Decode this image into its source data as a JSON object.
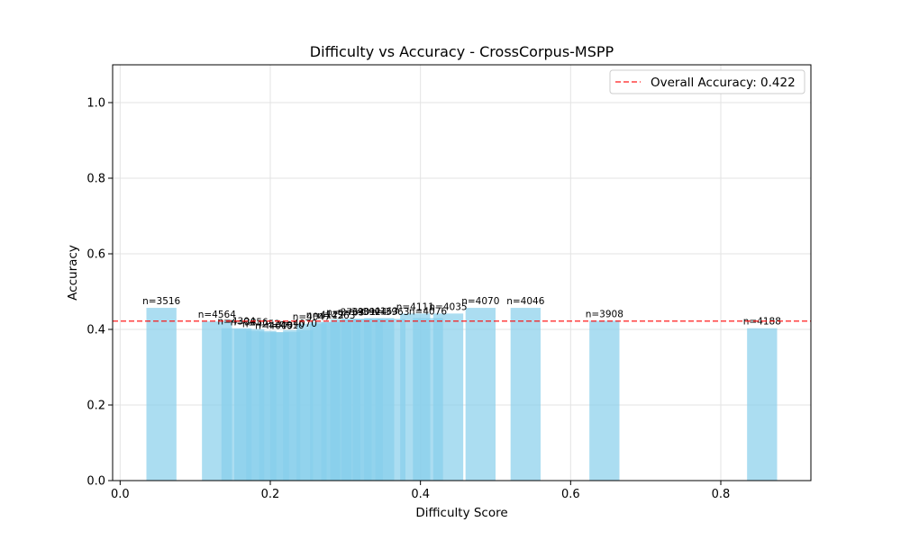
{
  "chart_data": {
    "type": "bar",
    "title": "Difficulty vs Accuracy - CrossCorpus-MSPP",
    "xlabel": "Difficulty Score",
    "ylabel": "Accuracy",
    "xlim": [
      -0.01,
      0.92
    ],
    "ylim": [
      0.0,
      1.1
    ],
    "xticks": [
      0.0,
      0.2,
      0.4,
      0.6,
      0.8
    ],
    "xtick_labels": [
      "0.0",
      "0.2",
      "0.4",
      "0.6",
      "0.8"
    ],
    "yticks": [
      0.0,
      0.2,
      0.4,
      0.6,
      0.8,
      1.0
    ],
    "ytick_labels": [
      "0.0",
      "0.2",
      "0.4",
      "0.6",
      "0.8",
      "1.0"
    ],
    "bar_width": 0.04,
    "grid": true,
    "bar_color": "#87ceeb",
    "bars": [
      {
        "x": 0.055,
        "value": 0.457,
        "label": "n=3516"
      },
      {
        "x": 0.129,
        "value": 0.421,
        "label": "n=4564"
      },
      {
        "x": 0.155,
        "value": 0.403,
        "label": "n=4304"
      },
      {
        "x": 0.172,
        "value": 0.401,
        "label": "n=3856"
      },
      {
        "x": 0.188,
        "value": 0.396,
        "label": "n=4252"
      },
      {
        "x": 0.205,
        "value": 0.392,
        "label": "n=4009"
      },
      {
        "x": 0.22,
        "value": 0.393,
        "label": "n=4010"
      },
      {
        "x": 0.237,
        "value": 0.398,
        "label": "n=4070"
      },
      {
        "x": 0.255,
        "value": 0.415,
        "label": "n=4047"
      },
      {
        "x": 0.273,
        "value": 0.42,
        "label": "n=4122"
      },
      {
        "x": 0.288,
        "value": 0.419,
        "label": "n=4363"
      },
      {
        "x": 0.3,
        "value": 0.427,
        "label": "n=3763"
      },
      {
        "x": 0.315,
        "value": 0.428,
        "label": "n=3901"
      },
      {
        "x": 0.33,
        "value": 0.428,
        "label": "n=3924"
      },
      {
        "x": 0.345,
        "value": 0.43,
        "label": "n=4163"
      },
      {
        "x": 0.36,
        "value": 0.428,
        "label": "n=3963"
      },
      {
        "x": 0.393,
        "value": 0.442,
        "label": "n=4111"
      },
      {
        "x": 0.41,
        "value": 0.43,
        "label": "n=4076"
      },
      {
        "x": 0.437,
        "value": 0.442,
        "label": "n=4035"
      },
      {
        "x": 0.48,
        "value": 0.457,
        "label": "n=4070"
      },
      {
        "x": 0.54,
        "value": 0.457,
        "label": "n=4046"
      },
      {
        "x": 0.645,
        "value": 0.423,
        "label": "n=3908"
      },
      {
        "x": 0.855,
        "value": 0.403,
        "label": "n=4188"
      }
    ],
    "reference_line": {
      "y": 0.422,
      "label": "Overall Accuracy: 0.422",
      "color": "#ff0000",
      "style": "dashed"
    },
    "legend_position": "top-right"
  }
}
